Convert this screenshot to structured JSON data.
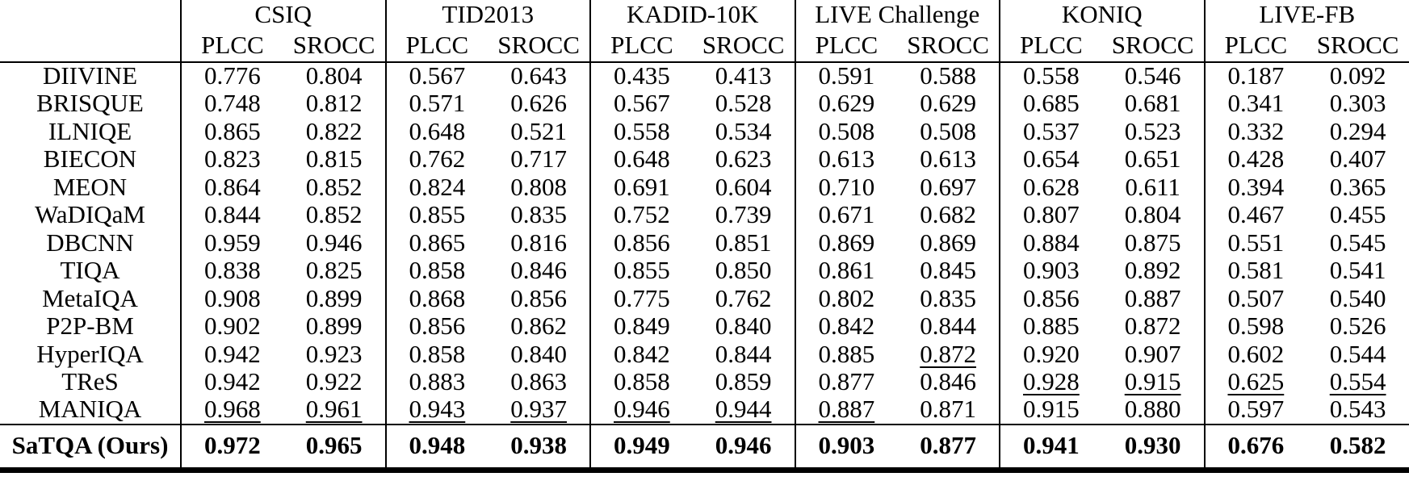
{
  "table": {
    "description": "IQA benchmark comparison table (PLCC / SROCC per dataset)",
    "datasets": [
      "CSIQ",
      "TID2013",
      "KADID-10K",
      "LIVE Challenge",
      "KONIQ",
      "LIVE-FB"
    ],
    "metrics": [
      "PLCC",
      "SROCC"
    ],
    "rows": [
      {
        "method": "DIIVINE",
        "values": [
          "0.776",
          "0.804",
          "0.567",
          "0.643",
          "0.435",
          "0.413",
          "0.591",
          "0.588",
          "0.558",
          "0.546",
          "0.187",
          "0.092"
        ],
        "underline": []
      },
      {
        "method": "BRISQUE",
        "values": [
          "0.748",
          "0.812",
          "0.571",
          "0.626",
          "0.567",
          "0.528",
          "0.629",
          "0.629",
          "0.685",
          "0.681",
          "0.341",
          "0.303"
        ],
        "underline": []
      },
      {
        "method": "ILNIQE",
        "values": [
          "0.865",
          "0.822",
          "0.648",
          "0.521",
          "0.558",
          "0.534",
          "0.508",
          "0.508",
          "0.537",
          "0.523",
          "0.332",
          "0.294"
        ],
        "underline": []
      },
      {
        "method": "BIECON",
        "values": [
          "0.823",
          "0.815",
          "0.762",
          "0.717",
          "0.648",
          "0.623",
          "0.613",
          "0.613",
          "0.654",
          "0.651",
          "0.428",
          "0.407"
        ],
        "underline": []
      },
      {
        "method": "MEON",
        "values": [
          "0.864",
          "0.852",
          "0.824",
          "0.808",
          "0.691",
          "0.604",
          "0.710",
          "0.697",
          "0.628",
          "0.611",
          "0.394",
          "0.365"
        ],
        "underline": []
      },
      {
        "method": "WaDIQaM",
        "values": [
          "0.844",
          "0.852",
          "0.855",
          "0.835",
          "0.752",
          "0.739",
          "0.671",
          "0.682",
          "0.807",
          "0.804",
          "0.467",
          "0.455"
        ],
        "underline": []
      },
      {
        "method": "DBCNN",
        "values": [
          "0.959",
          "0.946",
          "0.865",
          "0.816",
          "0.856",
          "0.851",
          "0.869",
          "0.869",
          "0.884",
          "0.875",
          "0.551",
          "0.545"
        ],
        "underline": []
      },
      {
        "method": "TIQA",
        "values": [
          "0.838",
          "0.825",
          "0.858",
          "0.846",
          "0.855",
          "0.850",
          "0.861",
          "0.845",
          "0.903",
          "0.892",
          "0.581",
          "0.541"
        ],
        "underline": []
      },
      {
        "method": "MetaIQA",
        "values": [
          "0.908",
          "0.899",
          "0.868",
          "0.856",
          "0.775",
          "0.762",
          "0.802",
          "0.835",
          "0.856",
          "0.887",
          "0.507",
          "0.540"
        ],
        "underline": []
      },
      {
        "method": "P2P-BM",
        "values": [
          "0.902",
          "0.899",
          "0.856",
          "0.862",
          "0.849",
          "0.840",
          "0.842",
          "0.844",
          "0.885",
          "0.872",
          "0.598",
          "0.526"
        ],
        "underline": []
      },
      {
        "method": "HyperIQA",
        "values": [
          "0.942",
          "0.923",
          "0.858",
          "0.840",
          "0.842",
          "0.844",
          "0.885",
          "0.872",
          "0.920",
          "0.907",
          "0.602",
          "0.544"
        ],
        "underline": [
          7
        ]
      },
      {
        "method": "TReS",
        "values": [
          "0.942",
          "0.922",
          "0.883",
          "0.863",
          "0.858",
          "0.859",
          "0.877",
          "0.846",
          "0.928",
          "0.915",
          "0.625",
          "0.554"
        ],
        "underline": [
          8,
          9,
          10,
          11
        ]
      },
      {
        "method": "MANIQA",
        "values": [
          "0.968",
          "0.961",
          "0.943",
          "0.937",
          "0.946",
          "0.944",
          "0.887",
          "0.871",
          "0.915",
          "0.880",
          "0.597",
          "0.543"
        ],
        "underline": [
          0,
          1,
          2,
          3,
          4,
          5,
          6
        ]
      }
    ],
    "ours": {
      "method": "SaTQA (Ours)",
      "values": [
        "0.972",
        "0.965",
        "0.948",
        "0.938",
        "0.949",
        "0.946",
        "0.903",
        "0.877",
        "0.941",
        "0.930",
        "0.676",
        "0.582"
      ],
      "underline": []
    },
    "colors": {
      "text": "#000000",
      "background": "#ffffff",
      "rule": "#000000"
    }
  }
}
